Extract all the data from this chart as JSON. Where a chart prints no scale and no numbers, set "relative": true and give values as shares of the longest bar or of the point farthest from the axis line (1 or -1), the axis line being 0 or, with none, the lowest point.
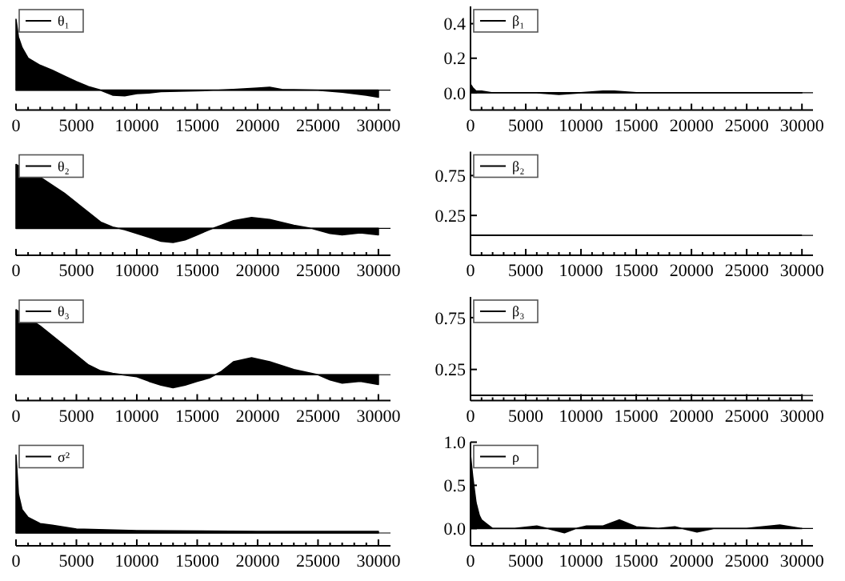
{
  "chart_data": [
    {
      "type": "area",
      "relative": true,
      "legend": "top left",
      "xlim": [
        0,
        31000
      ],
      "xticks": [
        0,
        5000,
        10000,
        15000,
        20000,
        25000,
        30000
      ],
      "tick_labels": "x",
      "x": [
        0,
        200,
        500,
        1000,
        2000,
        3000,
        4000,
        5000,
        6000,
        7000,
        8000,
        9000,
        10000,
        11000,
        12000,
        15000,
        18000,
        20000,
        21000,
        22000,
        25000,
        27000,
        29000,
        30000
      ],
      "series": [
        {
          "name": "θ₁",
          "color": "#000000",
          "values": [
            1,
            0.75,
            0.6,
            0.45,
            0.35,
            0.28,
            0.2,
            0.12,
            0.05,
            0.0,
            -0.07,
            -0.08,
            -0.05,
            -0.04,
            -0.02,
            -0.01,
            0.01,
            0.03,
            0.04,
            0.01,
            0.0,
            -0.03,
            -0.07,
            -0.1
          ]
        }
      ]
    },
    {
      "type": "area",
      "legend": "top left",
      "xlim": [
        0,
        31000
      ],
      "xticks": [
        0,
        5000,
        10000,
        15000,
        20000,
        25000,
        30000
      ],
      "ylim": [
        -0.1,
        0.5
      ],
      "yticks": [
        {
          "value": 0,
          "label": "0.0"
        },
        {
          "value": 0.2,
          "label": "0.2"
        },
        {
          "value": 0.4,
          "label": "0.4"
        }
      ],
      "x": [
        0,
        200,
        500,
        1000,
        2000,
        4000,
        6000,
        8000,
        10000,
        12000,
        13000,
        15000,
        18000,
        20000,
        22000,
        25000,
        28000,
        30000
      ],
      "series": [
        {
          "name": "β₁",
          "color": "#000000",
          "values": [
            0.05,
            0.03,
            0.01,
            0.01,
            0.0,
            0.0,
            0.0,
            -0.01,
            0.0,
            0.01,
            0.01,
            0.0,
            0.0,
            0.0,
            0.0,
            0.0,
            0.0,
            0.0
          ]
        }
      ]
    },
    {
      "type": "area",
      "relative": true,
      "legend": "top left",
      "xlim": [
        0,
        31000
      ],
      "xticks": [
        0,
        5000,
        10000,
        15000,
        20000,
        25000,
        30000
      ],
      "tick_labels": "x",
      "x": [
        0,
        2000,
        4000,
        5000,
        6000,
        7000,
        8000,
        9000,
        10000,
        11000,
        12000,
        13000,
        14000,
        15000,
        16000,
        17000,
        18000,
        19500,
        21000,
        23000,
        24500,
        26000,
        27000,
        28500,
        30000
      ],
      "series": [
        {
          "name": "θ₂",
          "color": "#000000",
          "values": [
            1,
            0.8,
            0.55,
            0.4,
            0.25,
            0.1,
            0.02,
            -0.02,
            -0.08,
            -0.14,
            -0.2,
            -0.22,
            -0.18,
            -0.1,
            -0.02,
            0.05,
            0.12,
            0.17,
            0.14,
            0.05,
            0.0,
            -0.08,
            -0.1,
            -0.07,
            -0.1
          ]
        }
      ]
    },
    {
      "type": "line",
      "legend": "top left",
      "xlim": [
        0,
        31000
      ],
      "xticks": [
        0,
        5000,
        10000,
        15000,
        20000,
        25000,
        30000
      ],
      "ylim": [
        -0.25,
        1.05
      ],
      "yticks": [
        {
          "value": 0.25,
          "label": "0.25"
        },
        {
          "value": 0.75,
          "label": "0.75"
        }
      ],
      "x": [
        0,
        5000,
        10000,
        15000,
        20000,
        25000,
        30000
      ],
      "series": [
        {
          "name": "β₂",
          "color": "#000000",
          "values": [
            0.0,
            0.0,
            0.0,
            0.0,
            0.0,
            0.0,
            0.0
          ]
        }
      ]
    },
    {
      "type": "area",
      "relative": true,
      "legend": "top left",
      "xlim": [
        0,
        31000
      ],
      "xticks": [
        0,
        5000,
        10000,
        15000,
        20000,
        25000,
        30000
      ],
      "tick_labels": "x",
      "x": [
        0,
        2000,
        4000,
        5000,
        6000,
        7000,
        8000,
        10000,
        11000,
        12000,
        13000,
        14000,
        15000,
        16000,
        17000,
        18000,
        19500,
        21000,
        23000,
        25000,
        26000,
        27000,
        28500,
        30000
      ],
      "series": [
        {
          "name": "θ₃",
          "color": "#000000",
          "values": [
            1,
            0.75,
            0.45,
            0.3,
            0.15,
            0.06,
            0.02,
            -0.03,
            -0.1,
            -0.16,
            -0.2,
            -0.16,
            -0.1,
            -0.05,
            0.05,
            0.2,
            0.26,
            0.2,
            0.08,
            0.0,
            -0.08,
            -0.13,
            -0.1,
            -0.15
          ]
        }
      ]
    },
    {
      "type": "line",
      "legend": "top left",
      "xlim": [
        0,
        31000
      ],
      "xticks": [
        0,
        5000,
        10000,
        15000,
        20000,
        25000,
        30000
      ],
      "ylim": [
        -0.05,
        0.95
      ],
      "yticks": [
        {
          "value": 0.25,
          "label": "0.25"
        },
        {
          "value": 0.75,
          "label": "0.75"
        }
      ],
      "x": [
        0,
        5000,
        10000,
        15000,
        20000,
        25000,
        30000
      ],
      "series": [
        {
          "name": "β₃",
          "color": "#000000",
          "values": [
            0.0,
            0.0,
            0.0,
            0.0,
            0.0,
            0.0,
            0.0
          ]
        }
      ]
    },
    {
      "type": "area",
      "relative": true,
      "legend": "top left",
      "xlim": [
        0,
        31000
      ],
      "xticks": [
        0,
        5000,
        10000,
        15000,
        20000,
        25000,
        30000
      ],
      "tick_labels": "x",
      "x": [
        0,
        200,
        500,
        1000,
        2000,
        3000,
        5000,
        10000,
        20000,
        30000
      ],
      "series": [
        {
          "name": "σ²",
          "color": "#000000",
          "values": [
            1,
            0.5,
            0.3,
            0.2,
            0.12,
            0.1,
            0.05,
            0.03,
            0.02,
            0.02
          ]
        }
      ]
    },
    {
      "type": "area",
      "legend": "top left",
      "xlim": [
        0,
        31000
      ],
      "xticks": [
        0,
        5000,
        10000,
        15000,
        20000,
        25000,
        30000
      ],
      "ylim": [
        -0.2,
        1.0
      ],
      "yticks": [
        {
          "value": 0,
          "label": "0.0"
        },
        {
          "value": 0.5,
          "label": "0.5"
        },
        {
          "value": 1,
          "label": "1.0"
        }
      ],
      "x": [
        0,
        200,
        500,
        800,
        1000,
        1500,
        2000,
        4000,
        6000,
        7000,
        8500,
        9500,
        10500,
        12000,
        13500,
        15000,
        17000,
        18500,
        20500,
        22000,
        25000,
        28000,
        30000
      ],
      "series": [
        {
          "name": "ρ",
          "color": "#000000",
          "values": [
            0.85,
            0.6,
            0.3,
            0.15,
            0.1,
            0.05,
            0.0,
            0.0,
            0.03,
            0.0,
            -0.05,
            0.0,
            0.03,
            0.03,
            0.1,
            0.02,
            0.0,
            0.02,
            -0.04,
            0.0,
            0.0,
            0.04,
            0.0
          ]
        }
      ]
    }
  ]
}
